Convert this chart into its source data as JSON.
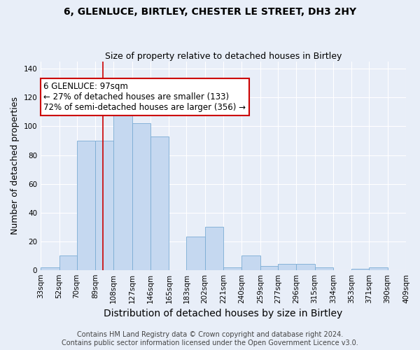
{
  "title1": "6, GLENLUCE, BIRTLEY, CHESTER LE STREET, DH3 2HY",
  "title2": "Size of property relative to detached houses in Birtley",
  "xlabel": "Distribution of detached houses by size in Birtley",
  "ylabel": "Number of detached properties",
  "bin_edges": [
    33,
    52,
    70,
    89,
    108,
    127,
    146,
    165,
    183,
    202,
    221,
    240,
    259,
    277,
    296,
    315,
    334,
    353,
    371,
    390,
    409
  ],
  "bar_heights": [
    2,
    10,
    90,
    90,
    113,
    102,
    93,
    0,
    23,
    30,
    2,
    10,
    3,
    4,
    4,
    2,
    0,
    1,
    2,
    0
  ],
  "xtick_labels": [
    "33sqm",
    "52sqm",
    "70sqm",
    "89sqm",
    "108sqm",
    "127sqm",
    "146sqm",
    "165sqm",
    "183sqm",
    "202sqm",
    "221sqm",
    "240sqm",
    "259sqm",
    "277sqm",
    "296sqm",
    "315sqm",
    "334sqm",
    "353sqm",
    "371sqm",
    "390sqm",
    "409sqm"
  ],
  "ylim": [
    0,
    145
  ],
  "yticks": [
    0,
    20,
    40,
    60,
    80,
    100,
    120,
    140
  ],
  "bar_color": "#c5d8f0",
  "bar_edge_color": "#7aacd4",
  "property_size": 97,
  "red_line_color": "#cc0000",
  "annotation_text": "6 GLENLUCE: 97sqm\n← 27% of detached houses are smaller (133)\n72% of semi-detached houses are larger (356) →",
  "annotation_box_color": "#ffffff",
  "annotation_box_edge_color": "#cc0000",
  "footer_text": "Contains HM Land Registry data © Crown copyright and database right 2024.\nContains public sector information licensed under the Open Government Licence v3.0.",
  "background_color": "#e8eef8",
  "grid_color": "#ffffff",
  "title1_fontsize": 10,
  "title2_fontsize": 9,
  "xlabel_fontsize": 10,
  "ylabel_fontsize": 9,
  "annotation_fontsize": 8.5,
  "footer_fontsize": 7,
  "tick_fontsize": 7.5
}
